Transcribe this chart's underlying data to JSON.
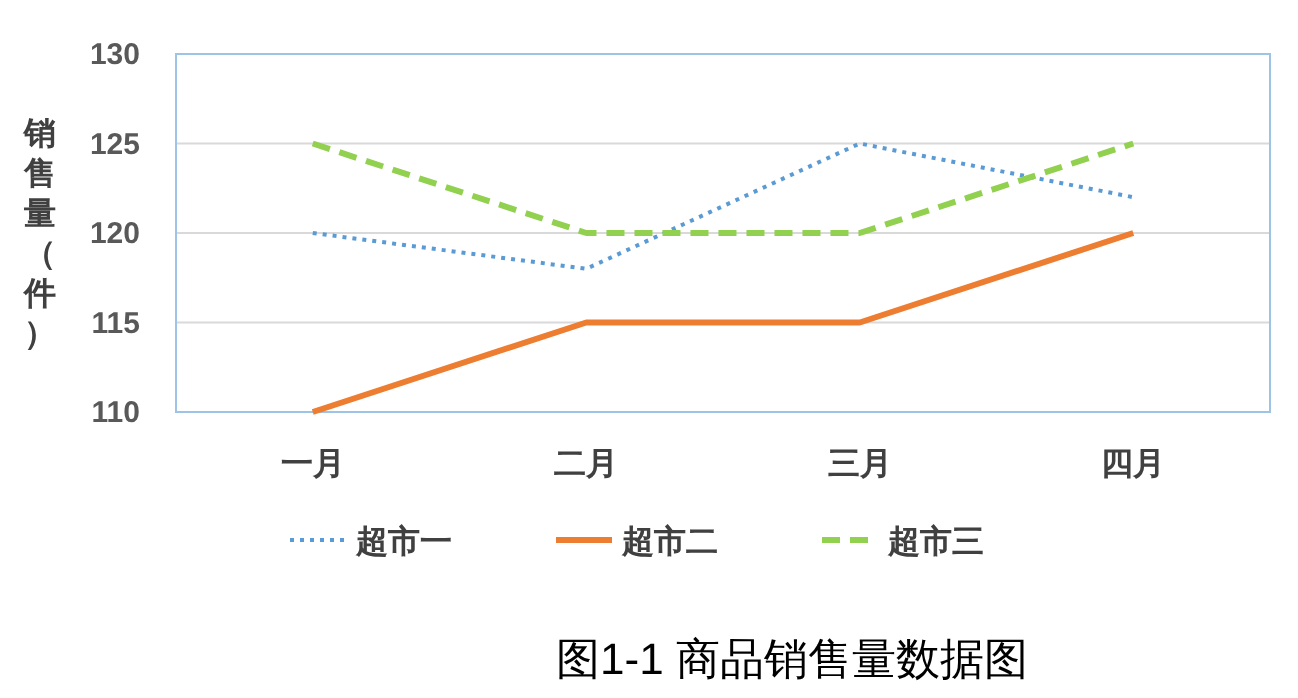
{
  "chart_data": {
    "type": "line",
    "title": "图1-1 商品销售量数据图",
    "ylabel": "销售量（件）",
    "categories": [
      "一月",
      "二月",
      "三月",
      "四月"
    ],
    "series": [
      {
        "name": "超市一",
        "color": "#5b9bd5",
        "line_style": "dotted",
        "values": [
          120,
          118,
          125,
          122
        ]
      },
      {
        "name": "超市二",
        "color": "#ed7d31",
        "line_style": "solid",
        "values": [
          110,
          115,
          115,
          120
        ]
      },
      {
        "name": "超市三",
        "color": "#92d050",
        "line_style": "dashed",
        "values": [
          125,
          120,
          120,
          125
        ]
      }
    ],
    "ylim": [
      110,
      130
    ],
    "yticks": [
      110,
      115,
      120,
      125,
      130
    ],
    "grid": "y",
    "legend": "bottom",
    "marker": "none"
  }
}
